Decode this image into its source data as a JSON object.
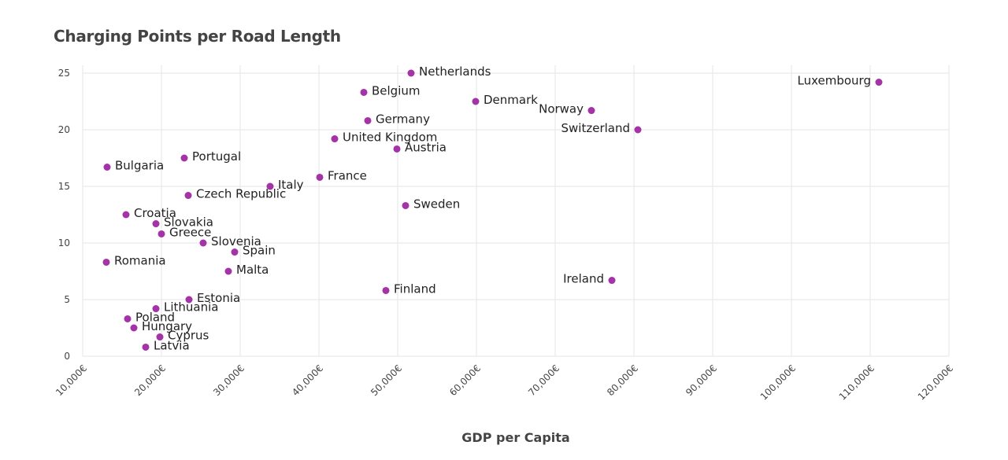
{
  "chart_data": {
    "type": "scatter",
    "title": "Charging Points per Road Length",
    "xlabel": "GDP per Capita",
    "ylabel": "",
    "xlim": [
      10000,
      120000
    ],
    "ylim": [
      0,
      25
    ],
    "x_ticks": [
      10000,
      20000,
      30000,
      40000,
      50000,
      60000,
      70000,
      80000,
      90000,
      100000,
      110000,
      120000
    ],
    "x_tick_labels": [
      "10,000€",
      "20,000€",
      "30,000€",
      "40,000€",
      "50,000€",
      "60,000€",
      "70,000€",
      "80,000€",
      "90,000€",
      "100,000€",
      "110,000€",
      "120,000€"
    ],
    "y_ticks": [
      0,
      5,
      10,
      15,
      20,
      25
    ],
    "y_tick_labels": [
      "0",
      "5",
      "10",
      "15",
      "20",
      "25"
    ],
    "grid": true,
    "marker_color": "#a333a6",
    "points": [
      {
        "label": "Netherlands",
        "x": 51700,
        "y": 25.0,
        "label_side": "right"
      },
      {
        "label": "Luxembourg",
        "x": 111100,
        "y": 24.2,
        "label_side": "left"
      },
      {
        "label": "Belgium",
        "x": 45700,
        "y": 23.3,
        "label_side": "right"
      },
      {
        "label": "Denmark",
        "x": 59900,
        "y": 22.5,
        "label_side": "right"
      },
      {
        "label": "Norway",
        "x": 74600,
        "y": 21.7,
        "label_side": "left"
      },
      {
        "label": "Germany",
        "x": 46200,
        "y": 20.8,
        "label_side": "right"
      },
      {
        "label": "Switzerland",
        "x": 80500,
        "y": 20.0,
        "label_side": "left"
      },
      {
        "label": "United Kingdom",
        "x": 42000,
        "y": 19.2,
        "label_side": "right"
      },
      {
        "label": "Austria",
        "x": 49900,
        "y": 18.3,
        "label_side": "right"
      },
      {
        "label": "Portugal",
        "x": 22900,
        "y": 17.5,
        "label_side": "right"
      },
      {
        "label": "Bulgaria",
        "x": 13100,
        "y": 16.7,
        "label_side": "right"
      },
      {
        "label": "France",
        "x": 40100,
        "y": 15.8,
        "label_side": "right"
      },
      {
        "label": "Italy",
        "x": 33800,
        "y": 15.0,
        "label_side": "right"
      },
      {
        "label": "Czech Republic",
        "x": 23400,
        "y": 14.2,
        "label_side": "right"
      },
      {
        "label": "Sweden",
        "x": 51000,
        "y": 13.3,
        "label_side": "right"
      },
      {
        "label": "Croatia",
        "x": 15500,
        "y": 12.5,
        "label_side": "right"
      },
      {
        "label": "Slovakia",
        "x": 19300,
        "y": 11.7,
        "label_side": "right"
      },
      {
        "label": "Greece",
        "x": 20000,
        "y": 10.8,
        "label_side": "right"
      },
      {
        "label": "Slovenia",
        "x": 25300,
        "y": 10.0,
        "label_side": "right"
      },
      {
        "label": "Spain",
        "x": 29300,
        "y": 9.2,
        "label_side": "right"
      },
      {
        "label": "Romania",
        "x": 13000,
        "y": 8.3,
        "label_side": "right"
      },
      {
        "label": "Malta",
        "x": 28500,
        "y": 7.5,
        "label_side": "right"
      },
      {
        "label": "Ireland",
        "x": 77200,
        "y": 6.7,
        "label_side": "left"
      },
      {
        "label": "Finland",
        "x": 48500,
        "y": 5.8,
        "label_side": "right"
      },
      {
        "label": "Estonia",
        "x": 23500,
        "y": 5.0,
        "label_side": "right"
      },
      {
        "label": "Lithuania",
        "x": 19300,
        "y": 4.2,
        "label_side": "right"
      },
      {
        "label": "Poland",
        "x": 15700,
        "y": 3.3,
        "label_side": "right"
      },
      {
        "label": "Hungary",
        "x": 16500,
        "y": 2.5,
        "label_side": "right"
      },
      {
        "label": "Cyprus",
        "x": 19800,
        "y": 1.7,
        "label_side": "right"
      },
      {
        "label": "Latvia",
        "x": 18000,
        "y": 0.8,
        "label_side": "right"
      }
    ]
  }
}
